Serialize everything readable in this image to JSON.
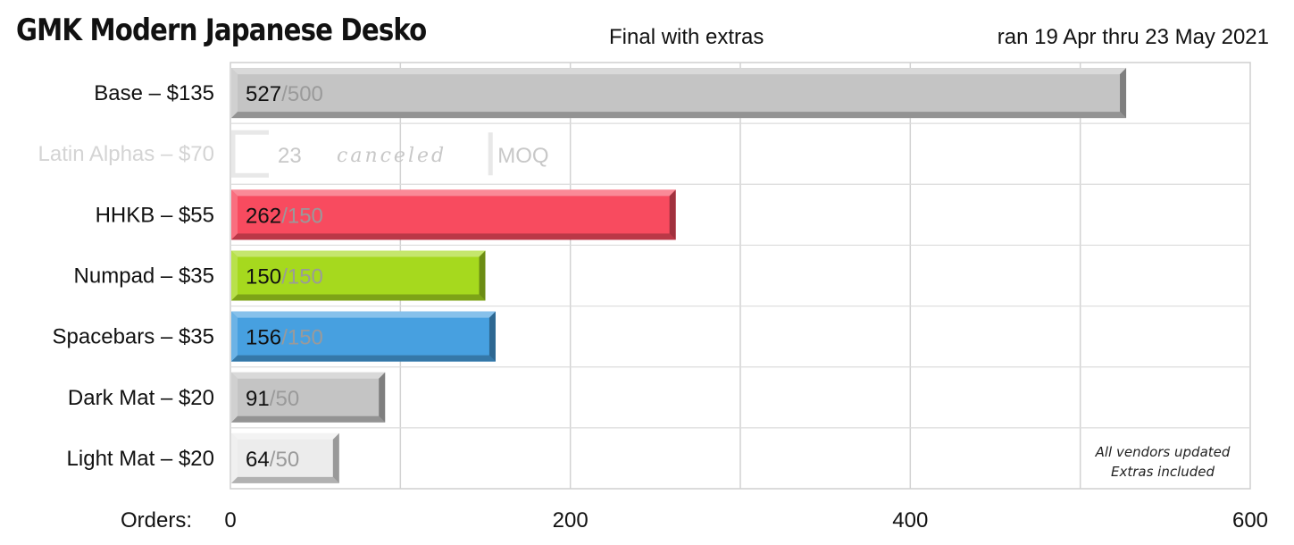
{
  "header": {
    "title": "GMK Modern Japanese Desko",
    "subtitle": "Final with extras",
    "date_range": "ran  19 Apr  thru  23 May  2021"
  },
  "chart_data": {
    "type": "bar",
    "orientation": "horizontal",
    "xlabel": "Orders:",
    "xlim": [
      0,
      600
    ],
    "xticks": [
      0,
      200,
      400,
      600
    ],
    "grid": true,
    "categories": [
      "Base – $135",
      "Latin Alphas – $70",
      "HHKB – $55",
      "Numpad – $35",
      "Spacebars – $35",
      "Dark Mat – $20",
      "Light Mat – $20"
    ],
    "values": [
      527,
      23,
      262,
      150,
      156,
      91,
      64
    ],
    "moq": [
      500,
      null,
      150,
      150,
      150,
      50,
      50
    ],
    "moq_labels": [
      "/500",
      "",
      "/150",
      "/150",
      "/150",
      "/50",
      "/50"
    ],
    "colors": [
      "#c4c4c4",
      "#f4f4f4",
      "#f84b5f",
      "#a6d91e",
      "#47a0e0",
      "#c4c4c4",
      "#ececec"
    ],
    "canceled": {
      "category": "Latin Alphas – $70",
      "count_label": "23",
      "status": "canceled",
      "moq_label": "MOQ"
    },
    "annotation": [
      "All vendors updated",
      "Extras included"
    ]
  }
}
